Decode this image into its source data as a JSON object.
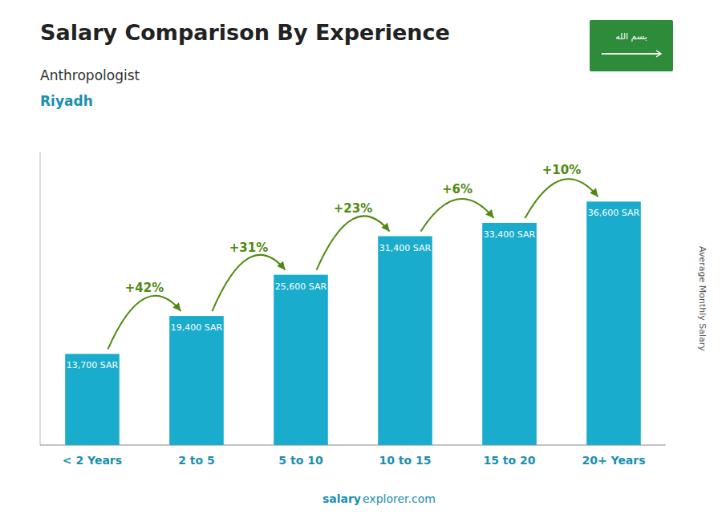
{
  "chart_data": {
    "type": "bar",
    "title": "Salary Comparison By Experience",
    "subtitle": "Anthropologist",
    "city": "Riyadh",
    "y_label": "Average Monthly Salary",
    "categories": [
      "< 2 Years",
      "2 to 5",
      "5 to 10",
      "10 to 15",
      "15 to 20",
      "20+ Years"
    ],
    "values": [
      13700,
      19400,
      25600,
      31400,
      33400,
      36600
    ],
    "value_labels": [
      "13,700 SAR",
      "19,400 SAR",
      "25,600 SAR",
      "31,400 SAR",
      "33,400 SAR",
      "36,600 SAR"
    ],
    "data_labels": true,
    "pct_changes": [
      null,
      "+42%",
      "+31%",
      "+23%",
      "+6%",
      "+10%"
    ],
    "color": "#1AACCC",
    "ylim": [
      0,
      44000
    ],
    "tick_labels": "x",
    "grid": false,
    "flag_text": "بسم الله",
    "footer": [
      "salary",
      "explorer.com"
    ]
  }
}
